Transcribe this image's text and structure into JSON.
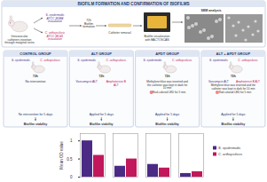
{
  "header": {
    "title": "BIOFILM FORMATION AND CONFIRMATION OF BIOFILMS",
    "insertion": "Intravascular catheters insertion through marginal veins",
    "inoculations": [
      "S. epidermidis ATCC 35984 inoculation",
      "C. orthopsilosis ATCC 96141 inoculation"
    ],
    "formation": "72h Biofilm formation",
    "removal": "Catheter removal",
    "visualization": "Biofilm visualization with BACTOSCAN",
    "sem": "SEM analysis"
  },
  "groups": [
    {
      "title": "CONTROL GROUP",
      "organisms": [
        "S. epidermidis",
        "C. orthopsilosis"
      ],
      "time": "72h",
      "treatments": [
        "No intervention"
      ],
      "duration": "No intervention for 5 days",
      "outcome": "Biofilm viability"
    },
    {
      "title": "ALT GROUP",
      "organisms": [
        "S. epidermidis",
        "C. orthopsilosis"
      ],
      "time": "72h",
      "treatments": [
        "Vancomycin ALT",
        "Amphotericin B ALT"
      ],
      "duration": "Applied for 5 days",
      "outcome": "Biofilm viability"
    },
    {
      "title": "APDT GROUP",
      "organisms": [
        "S. epidermidis",
        "C. orthopsilosis"
      ],
      "time": "72h",
      "treatments": [
        "Methylene blue was inserted and the catheter was kept in dark for 10 min",
        "Red colored LED for 5 min"
      ],
      "duration": "Applied for 5 days",
      "outcome": "Biofilm viability"
    },
    {
      "title": "ALT + APDT GROUP",
      "organisms": [
        "S. epidermidis",
        "C. orthopsilosis"
      ],
      "time": "72h",
      "treatments": [
        "Vancomycin ALT",
        "Amphotericin B ALT",
        "Methylene blue was inserted and the catheter was kept in dark for 10 min",
        "Red colored LED for 5 min"
      ],
      "duration": "Applied for 5 days",
      "outcome": "Biofilm viability"
    }
  ],
  "chart_data": {
    "type": "bar",
    "y_label": "Mean OD value",
    "categories": [
      null,
      null,
      null,
      null
    ],
    "series": [
      {
        "name": "S. epidermidis",
        "color": "#4b2a86",
        "values": [
          1.0,
          0.3,
          0.35,
          0.1
        ]
      },
      {
        "name": "C. orthopsilosis",
        "color": "#c2185b",
        "values": [
          0.6,
          0.5,
          0.25,
          0.15
        ]
      }
    ],
    "ylim": [
      0,
      1.2
    ],
    "yticks": [
      0,
      0.5,
      1
    ],
    "tick_labels": "y",
    "legend": "right"
  }
}
